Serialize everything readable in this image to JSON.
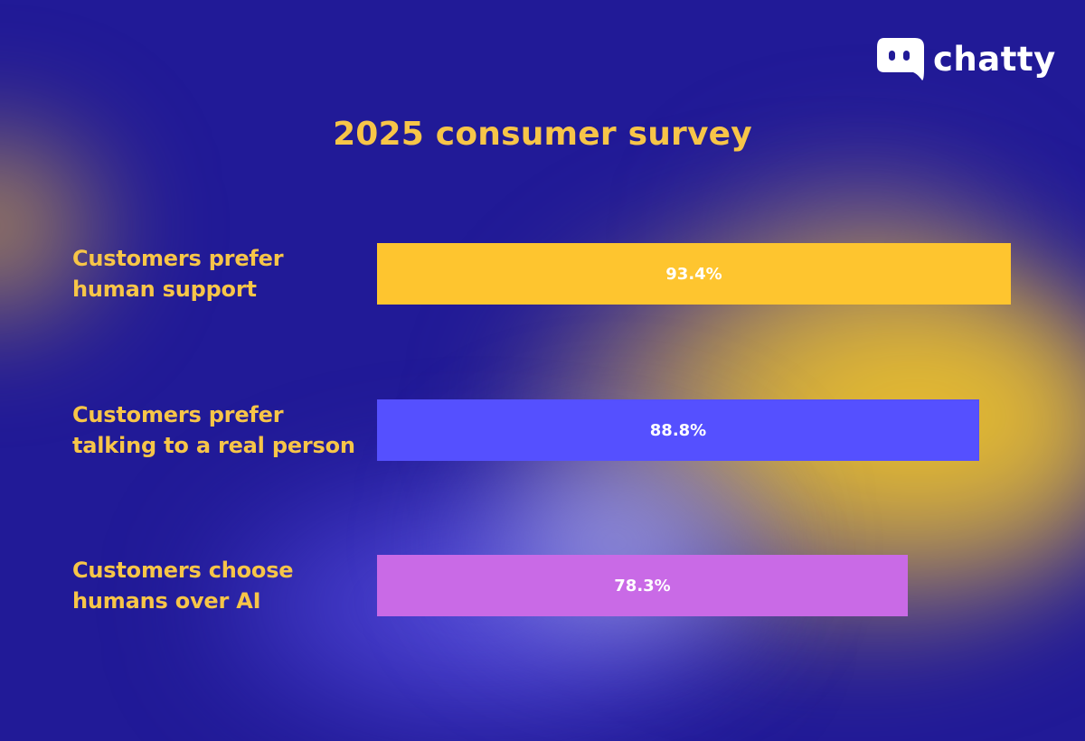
{
  "brand": {
    "name": "chatty",
    "icon": "chat-bubble-icon"
  },
  "chart_data": {
    "type": "bar",
    "orientation": "horizontal",
    "title": "2025 consumer survey",
    "xlabel": "",
    "ylabel": "",
    "xlim": [
      0,
      100
    ],
    "grid": false,
    "legend": "none",
    "unit": "%",
    "categories": [
      [
        "Customers prefer",
        "human support"
      ],
      [
        "Customers prefer",
        "talking to a real person"
      ],
      [
        "Customers choose",
        "humans over AI"
      ]
    ],
    "values": [
      93.4,
      88.8,
      78.3
    ],
    "value_labels": [
      "93.4%",
      "88.8%",
      "78.3%"
    ],
    "colors": [
      "#fec52f",
      "#5550ff",
      "#c96ae6"
    ]
  },
  "colors": {
    "background": "#211a97",
    "title_text": "#f7c548",
    "label_text": "#f7c548",
    "value_text": "#ffffff"
  }
}
